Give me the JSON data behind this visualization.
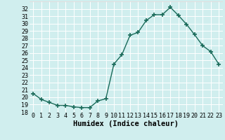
{
  "x": [
    0,
    1,
    2,
    3,
    4,
    5,
    6,
    7,
    8,
    9,
    10,
    11,
    12,
    13,
    14,
    15,
    16,
    17,
    18,
    19,
    20,
    21,
    22,
    23
  ],
  "y": [
    20.5,
    19.7,
    19.3,
    18.9,
    18.9,
    18.7,
    18.6,
    18.6,
    19.5,
    19.8,
    24.5,
    25.8,
    28.4,
    28.8,
    30.4,
    31.2,
    31.2,
    32.2,
    31.1,
    29.9,
    28.5,
    27.0,
    26.2,
    24.5
  ],
  "line_color": "#1a6b5a",
  "marker": "+",
  "markersize": 4,
  "markeredgewidth": 1.2,
  "linewidth": 1.0,
  "xlabel": "Humidex (Indice chaleur)",
  "xlabel_fontsize": 7.5,
  "ylim": [
    18,
    33
  ],
  "xlim": [
    -0.5,
    23.5
  ],
  "yticks": [
    18,
    19,
    20,
    21,
    22,
    23,
    24,
    25,
    26,
    27,
    28,
    29,
    30,
    31,
    32
  ],
  "xticks": [
    0,
    1,
    2,
    3,
    4,
    5,
    6,
    7,
    8,
    9,
    10,
    11,
    12,
    13,
    14,
    15,
    16,
    17,
    18,
    19,
    20,
    21,
    22,
    23
  ],
  "bg_color": "#d0eeee",
  "grid_color": "#ffffff",
  "grid_minor_color": "#e8d8d8",
  "tick_fontsize": 6.0
}
